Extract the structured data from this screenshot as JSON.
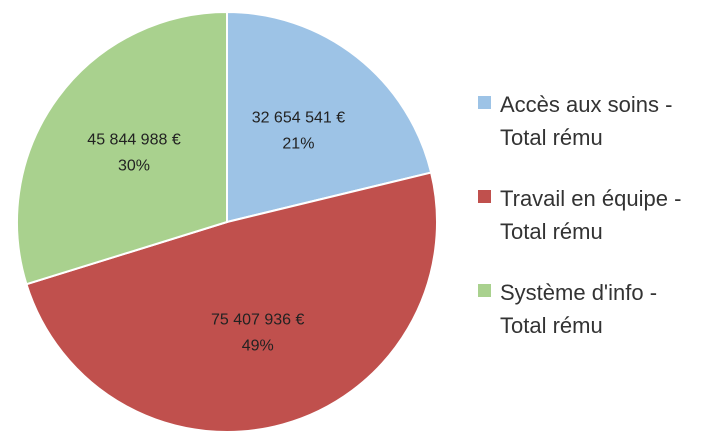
{
  "chart_data": {
    "type": "pie",
    "categories": [
      "Accès aux soins - Total rému",
      "Travail en équipe - Total rému",
      "Système d'info - Total rému"
    ],
    "values": [
      32654541,
      75407936,
      45844988
    ],
    "value_labels": [
      "32 654 541 €",
      "75 407 936 €",
      "45 844 988 €"
    ],
    "percent_labels": [
      "21%",
      "49%",
      "30%"
    ],
    "colors": [
      "#9dc3e6",
      "#c0504d",
      "#a9d18e"
    ],
    "legend": "right"
  }
}
